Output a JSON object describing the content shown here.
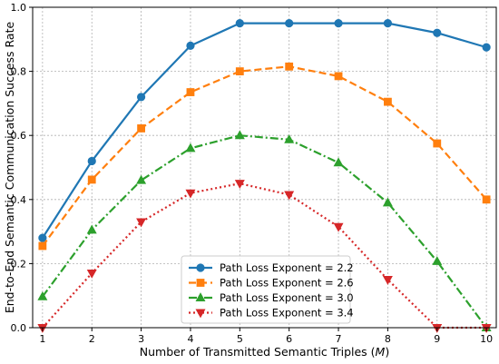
{
  "chart_data": {
    "type": "line",
    "xlabel": "Number of Transmitted Semantic Triples (",
    "xlabel_var": "M",
    "xlabel_end": ")",
    "ylabel": "End-to-End Semantic Communication Success Rate",
    "xlim": [
      0.8,
      10.2
    ],
    "ylim": [
      0.0,
      1.0
    ],
    "xticks": [
      1,
      2,
      3,
      4,
      5,
      6,
      7,
      8,
      9,
      10
    ],
    "yticks": [
      0.0,
      0.2,
      0.4,
      0.6,
      0.8,
      1.0
    ],
    "ytick_labels": [
      "0.0",
      "0.2",
      "0.4",
      "0.6",
      "0.8",
      "1.0"
    ],
    "grid": true,
    "legend_position": "lower-center",
    "x": [
      1,
      2,
      3,
      4,
      5,
      6,
      7,
      8,
      9,
      10
    ],
    "series": [
      {
        "name": "Path Loss Exponent = 2.2",
        "color": "#1f77b4",
        "marker": "circle",
        "line_style": "solid",
        "values": [
          0.28,
          0.52,
          0.72,
          0.88,
          0.95,
          0.95,
          0.95,
          0.95,
          0.92,
          0.875
        ]
      },
      {
        "name": "Path Loss Exponent = 2.6",
        "color": "#ff7f0e",
        "marker": "square",
        "line_style": "dashed",
        "values": [
          0.255,
          0.462,
          0.622,
          0.735,
          0.8,
          0.815,
          0.785,
          0.705,
          0.575,
          0.4
        ]
      },
      {
        "name": "Path Loss Exponent = 3.0",
        "color": "#2ca02c",
        "marker": "triangle-up",
        "line_style": "dashdot",
        "values": [
          0.097,
          0.305,
          0.46,
          0.56,
          0.6,
          0.587,
          0.515,
          0.39,
          0.207,
          0.0
        ]
      },
      {
        "name": "Path Loss Exponent = 3.4",
        "color": "#d62728",
        "marker": "triangle-down",
        "line_style": "dotted",
        "values": [
          0.0,
          0.17,
          0.33,
          0.42,
          0.45,
          0.415,
          0.315,
          0.15,
          0.0,
          0.0
        ]
      }
    ]
  }
}
